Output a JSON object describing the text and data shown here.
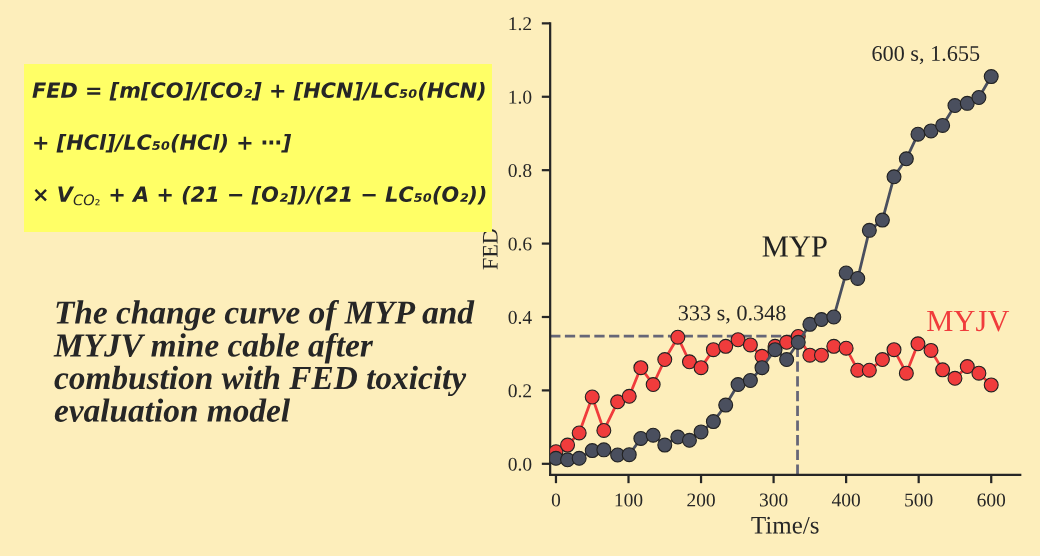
{
  "chart_data": {
    "type": "line",
    "xlabel": "Time/s",
    "ylabel": "FED",
    "x": [
      0,
      16,
      32,
      50,
      66,
      85,
      101,
      117,
      134,
      150,
      168,
      184,
      200,
      217,
      234,
      251,
      268,
      284,
      302,
      318,
      334,
      350,
      366,
      383,
      400,
      416,
      432,
      450,
      466,
      483,
      499,
      517,
      533,
      550,
      567,
      583,
      600
    ],
    "series": [
      {
        "name": "MYP",
        "color": "#4a4f5e",
        "values": [
          0.015,
          0.011,
          0.015,
          0.036,
          0.038,
          0.024,
          0.025,
          0.069,
          0.078,
          0.051,
          0.073,
          0.064,
          0.087,
          0.115,
          0.16,
          0.216,
          0.227,
          0.262,
          0.311,
          0.284,
          0.331,
          0.38,
          0.393,
          0.4,
          0.52,
          0.505,
          0.636,
          0.664,
          0.782,
          0.831,
          0.898,
          0.907,
          0.922,
          0.976,
          0.982,
          0.998,
          1.055
        ]
      },
      {
        "name": "MYJV",
        "color": "#f03c3c",
        "values": [
          0.033,
          0.051,
          0.084,
          0.182,
          0.091,
          0.169,
          0.184,
          0.262,
          0.216,
          0.284,
          0.345,
          0.278,
          0.262,
          0.311,
          0.32,
          0.338,
          0.324,
          0.293,
          0.32,
          0.331,
          0.347,
          0.296,
          0.296,
          0.32,
          0.315,
          0.255,
          0.255,
          0.284,
          0.311,
          0.247,
          0.327,
          0.309,
          0.256,
          0.233,
          0.265,
          0.247,
          0.215
        ]
      }
    ],
    "marker": "circle",
    "line_style": "solid",
    "grid": false,
    "legend": false,
    "xlim": [
      -8,
      640
    ],
    "xticks": [
      0,
      100,
      200,
      300,
      400,
      500,
      600
    ],
    "ylim": [
      -0.03,
      1.2
    ],
    "yticks": [
      {
        "value": 0,
        "label": "0.0"
      },
      0.2,
      0.4,
      0.6,
      0.8,
      {
        "value": 1,
        "label": "1.0"
      },
      1.2
    ],
    "ref_lines": [
      {
        "axis": "y",
        "value": 0.348,
        "line_style": "dashed",
        "color": "#666677"
      },
      {
        "axis": "x",
        "value": 333,
        "line_style": "dashed",
        "color": "#666677"
      }
    ],
    "annotations": [
      {
        "text": "600 s, 1.655",
        "x": 600,
        "y": 1.055
      },
      {
        "text": "333 s, 0.348",
        "x": 333,
        "y": 0.348
      },
      "FED = [m[CO]/[CO₂] + [HCN]/LC₅₀(HCN)",
      "+ [HCl]/LC₅₀(HCl) + ⋯]",
      "× V$_{CO₂}$ + A + (21 − [O₂])/(21 − LC₅₀(O₂))",
      "The change curve of MYP and MYJV mine cable after combustion with FED toxicity evaluation model"
    ]
  }
}
